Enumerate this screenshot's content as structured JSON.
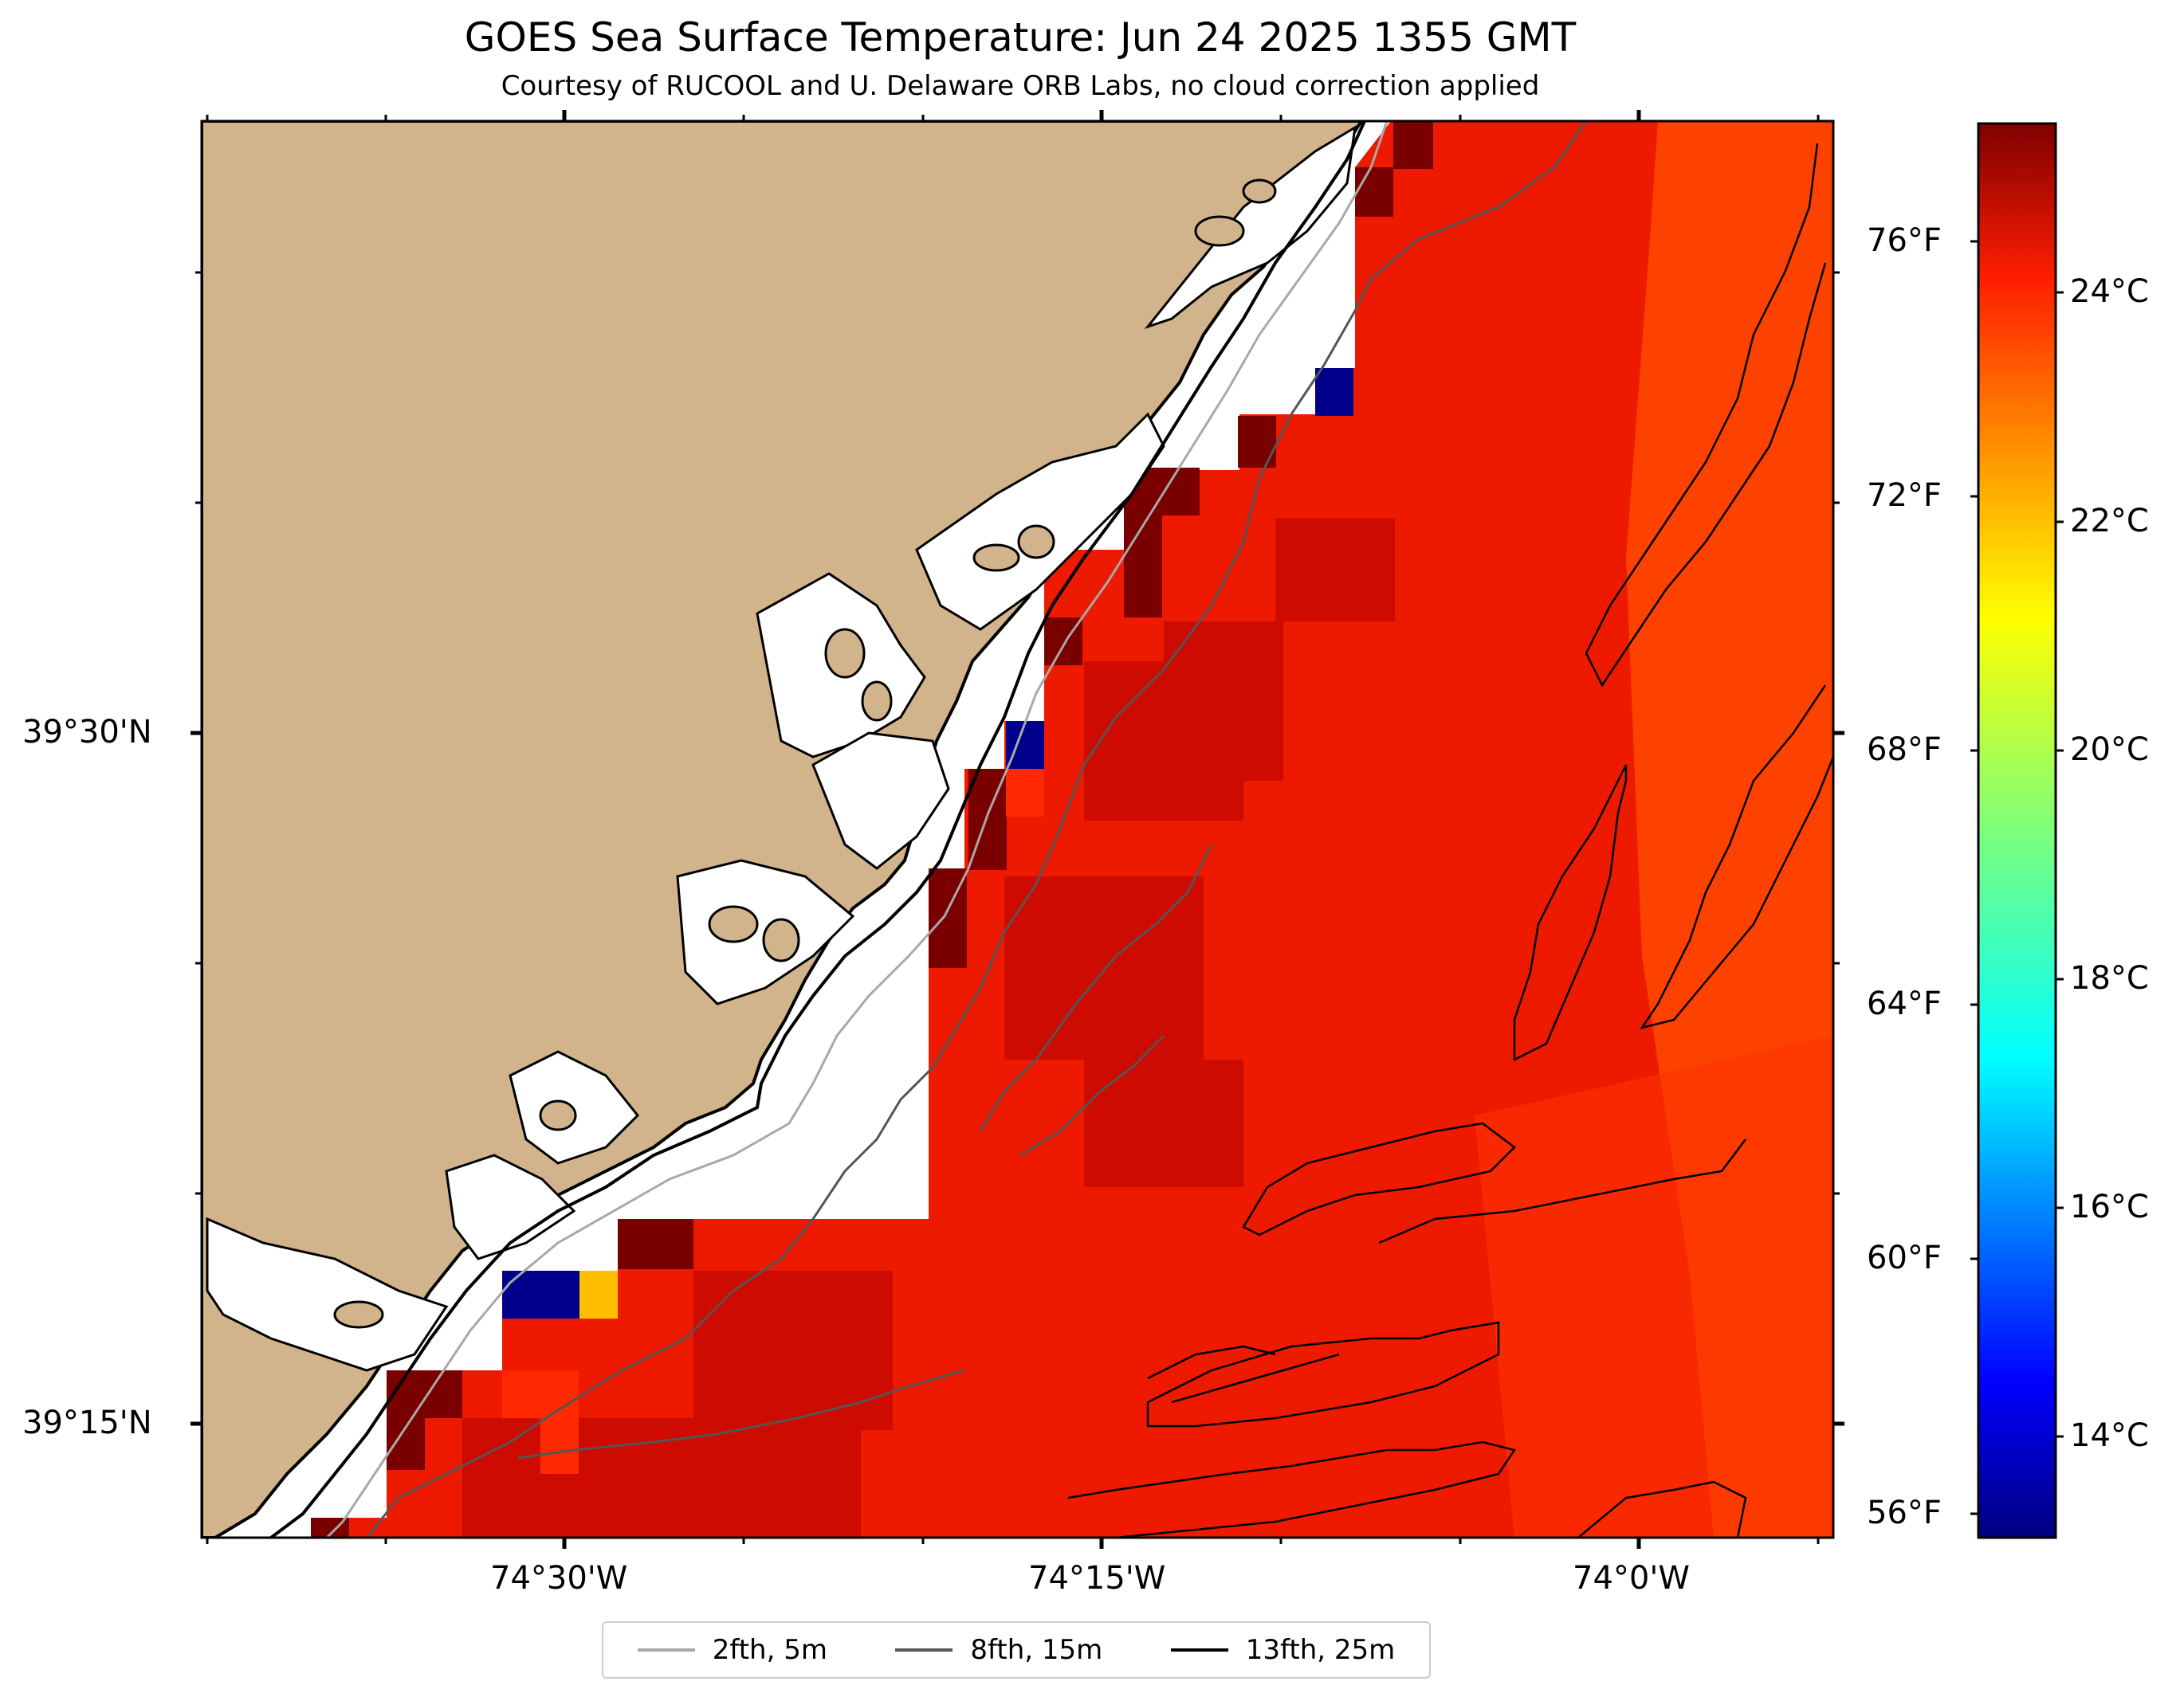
{
  "title": "GOES Sea Surface Temperature: Jun 24 2025 1355 GMT",
  "subtitle": "Courtesy of RUCOOL and U. Delaware ORB Labs, no cloud correction applied",
  "axes": {
    "lon_labels": [
      "74°30'W",
      "74°15'W",
      "74°0'W"
    ],
    "lat_labels": [
      "39°30'N",
      "39°15'N"
    ]
  },
  "colorbar": {
    "celsius_labels": [
      "24°C",
      "22°C",
      "20°C",
      "18°C",
      "16°C",
      "14°C"
    ],
    "fahrenheit_labels": [
      "76°F",
      "72°F",
      "68°F",
      "64°F",
      "60°F",
      "56°F"
    ],
    "colormap": "jet"
  },
  "legend": {
    "items": [
      {
        "label": "2fth, 5m",
        "color": "#a8a8a8"
      },
      {
        "label": "8fth, 15m",
        "color": "#555555"
      },
      {
        "label": "13fth, 25m",
        "color": "#000000"
      }
    ]
  },
  "colors": {
    "land": "#d2b48c",
    "sea_main": "#ee1a00",
    "sea_dark": "#7a0000",
    "sea_offshore": "#ff4a00",
    "cold_pixel": "#00008b",
    "warm_pixel": "#ffbf00"
  }
}
